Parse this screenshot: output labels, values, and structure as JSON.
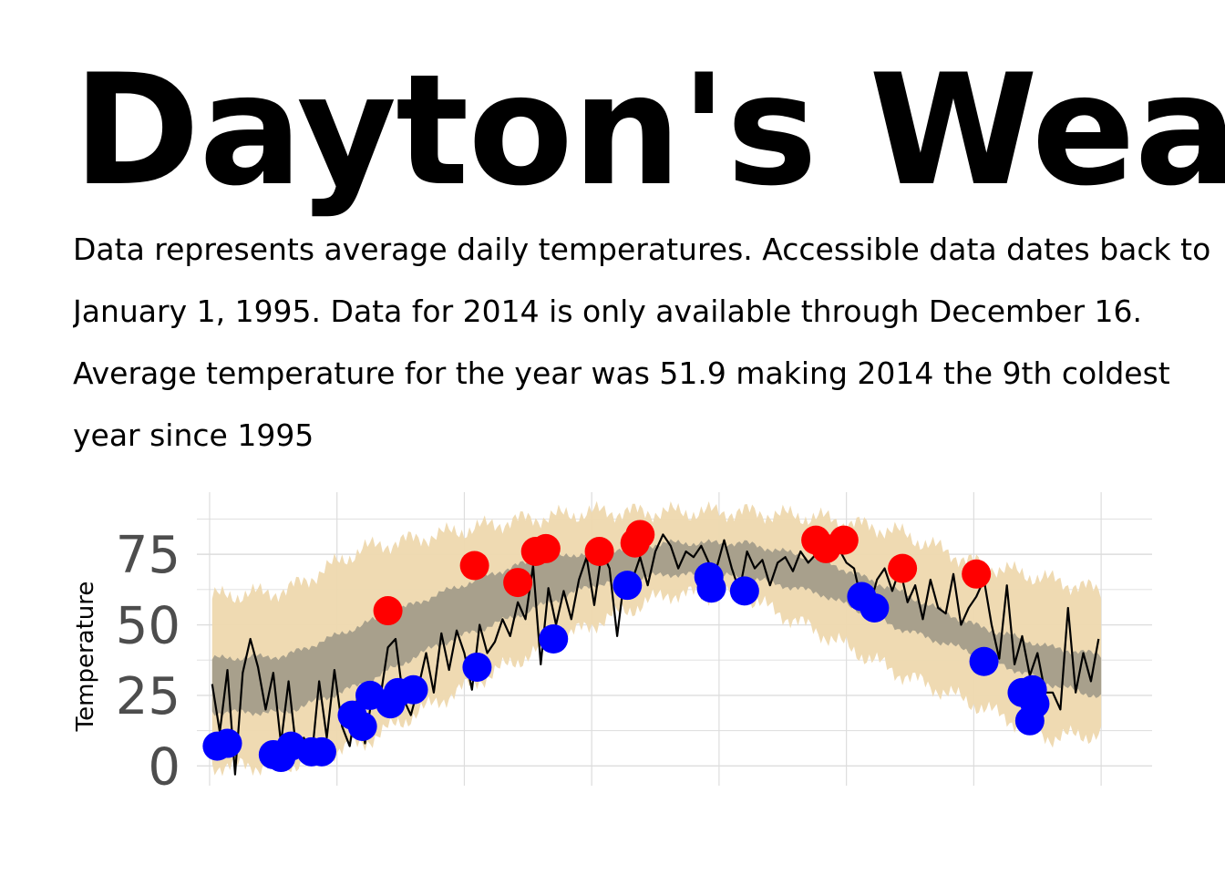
{
  "title": "Dayton's Weath",
  "subtitle_lines": [
    "Data represents average daily temperatures. Accessible data dates back to",
    "January 1, 1995. Data for 2014 is only available through December 16.",
    "Average temperature for the year was 51.9 making 2014 the 9th coldest",
    "year since 1995"
  ],
  "chart_data": {
    "type": "line",
    "ylabel": "Temperature",
    "xlabel": "",
    "ylim": [
      -7,
      97
    ],
    "xlim": [
      -5,
      370
    ],
    "yticks": [
      0,
      25,
      50,
      75
    ],
    "grid": true,
    "colors": {
      "record_band": "#eed8ae",
      "normal_band": "#a39d8a",
      "line_2014": "#000000",
      "record_high": "#ff0000",
      "record_low": "#0000ff",
      "grid": "#dddddd"
    },
    "normal_band": {
      "day": [
        1,
        30,
        60,
        90,
        120,
        150,
        180,
        210,
        240,
        270,
        300,
        330,
        360
      ],
      "low": [
        19,
        19,
        29,
        43,
        53,
        64,
        68,
        67,
        61,
        49,
        40,
        29,
        22
      ],
      "high": [
        38,
        39,
        50,
        61,
        71,
        76,
        79,
        79,
        73,
        62,
        50,
        42,
        38
      ]
    },
    "record_band": {
      "day": [
        1,
        30,
        60,
        90,
        120,
        150,
        180,
        210,
        240,
        270,
        300,
        330,
        360
      ],
      "low": [
        0,
        0,
        8,
        23,
        37,
        50,
        61,
        60,
        47,
        33,
        22,
        10,
        12
      ],
      "high": [
        60,
        62,
        77,
        82,
        87,
        90,
        90,
        90,
        88,
        83,
        72,
        66,
        60
      ]
    },
    "series": [
      {
        "x": [
          1,
          4,
          7,
          10,
          13,
          16,
          19,
          22,
          25,
          28,
          31,
          34,
          37,
          40,
          43,
          46,
          49,
          52,
          55,
          58,
          61,
          64,
          67,
          70,
          73,
          76,
          79,
          82,
          85,
          88,
          91,
          94,
          97,
          100,
          103,
          106,
          109,
          112,
          115,
          118,
          121,
          124,
          127,
          130,
          133,
          136,
          139,
          142,
          145,
          148,
          151,
          154,
          157,
          160,
          163,
          166,
          169,
          172,
          175,
          178,
          181,
          184,
          187,
          190,
          193,
          196,
          199,
          202,
          205,
          208,
          211,
          214,
          217,
          220,
          223,
          226,
          229,
          232,
          235,
          238,
          241,
          244,
          247,
          250,
          253,
          256,
          259,
          262,
          265,
          268,
          271,
          274,
          277,
          280,
          283,
          286,
          289,
          292,
          295,
          298,
          301,
          304,
          307,
          310,
          313,
          316,
          319,
          322,
          325,
          328,
          331,
          334,
          337,
          340,
          343,
          346,
          349
        ],
        "y": [
          29,
          12,
          34,
          -3,
          33,
          45,
          35,
          20,
          33,
          8,
          30,
          6,
          10,
          2,
          30,
          10,
          34,
          14,
          7,
          24,
          8,
          26,
          24,
          42,
          45,
          24,
          18,
          28,
          40,
          26,
          47,
          34,
          48,
          40,
          27,
          50,
          40,
          44,
          52,
          46,
          58,
          52,
          71,
          36,
          63,
          50,
          62,
          52,
          66,
          74,
          57,
          76,
          70,
          46,
          68,
          66,
          74,
          64,
          76,
          82,
          78,
          70,
          76,
          74,
          78,
          72,
          70,
          80,
          70,
          62,
          76,
          70,
          73,
          64,
          72,
          74,
          69,
          76,
          72,
          75,
          80,
          74,
          77,
          72,
          70,
          58,
          56,
          66,
          70,
          62,
          70,
          58,
          64,
          52,
          66,
          56,
          54,
          68,
          50,
          56,
          60,
          66,
          50,
          38,
          64,
          36,
          46,
          32,
          40,
          26,
          26,
          20,
          56,
          26,
          40,
          30,
          45
        ]
      }
    ],
    "record_highs": {
      "x": [
        70,
        104,
        121,
        128,
        132,
        153,
        167,
        169,
        238,
        242,
        249,
        272,
        301
      ],
      "y": [
        55,
        71,
        65,
        76,
        77,
        76,
        79,
        82,
        80,
        77,
        80,
        70,
        68
      ]
    },
    "record_lows": {
      "x": [
        3,
        7,
        25,
        28,
        32,
        40,
        44,
        56,
        60,
        63,
        71,
        74,
        80,
        105,
        135,
        164,
        196,
        197,
        210,
        256,
        261,
        304,
        319,
        322,
        323,
        324
      ],
      "y": [
        7,
        8,
        4,
        3,
        7,
        5,
        5,
        18,
        14,
        25,
        22,
        26,
        27,
        35,
        45,
        64,
        67,
        63,
        62,
        60,
        56,
        37,
        26,
        16,
        27,
        22
      ]
    }
  }
}
